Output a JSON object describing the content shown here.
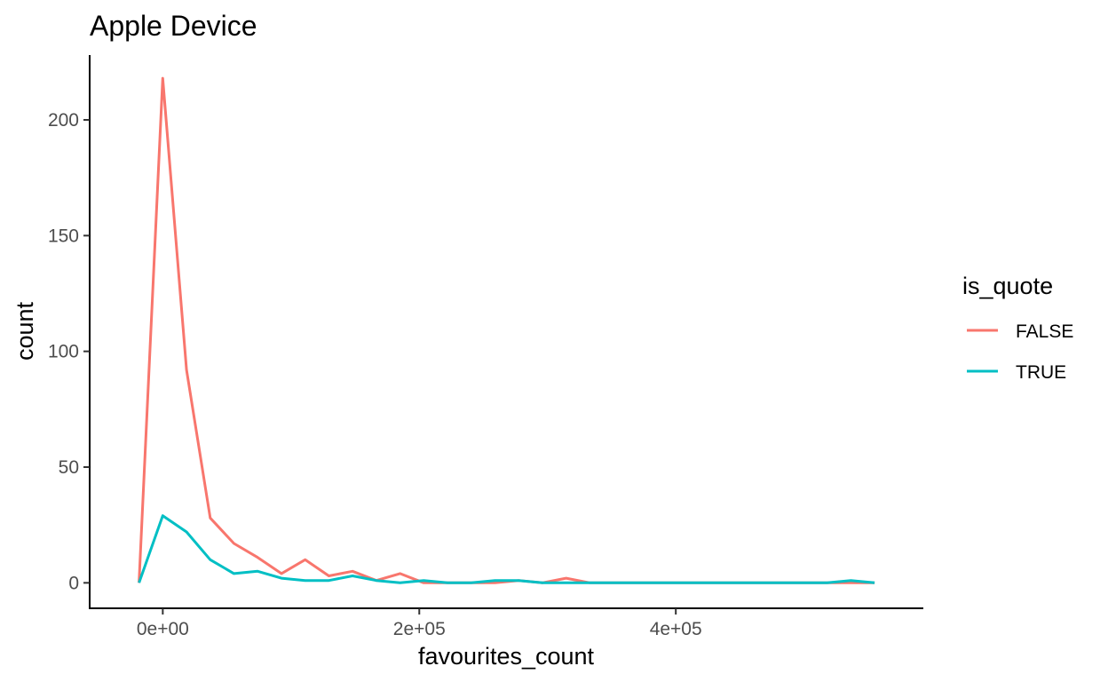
{
  "chart_data": {
    "type": "line",
    "title": "Apple Device",
    "xlabel": "favourites_count",
    "ylabel": "count",
    "xlim": [
      -57000,
      593000
    ],
    "ylim": [
      -11,
      228
    ],
    "x_ticks": [
      0,
      200000,
      400000
    ],
    "x_tick_labels": [
      "0e+00",
      "2e+05",
      "4e+05"
    ],
    "y_ticks": [
      0,
      50,
      100,
      150,
      200
    ],
    "y_tick_labels": [
      "0",
      "50",
      "100",
      "150",
      "200"
    ],
    "grid": false,
    "legend": {
      "title": "is_quote",
      "placement": "right",
      "entries": [
        "FALSE",
        "TRUE"
      ]
    },
    "series": [
      {
        "name": "FALSE",
        "color": "#F8766D",
        "points": [
          [
            -18500,
            0
          ],
          [
            0,
            218
          ],
          [
            18500,
            92
          ],
          [
            37000,
            28
          ],
          [
            55500,
            17
          ],
          [
            74000,
            11
          ],
          [
            92500,
            4
          ],
          [
            111000,
            10
          ],
          [
            129500,
            3
          ],
          [
            148000,
            5
          ],
          [
            166500,
            1
          ],
          [
            185000,
            4
          ],
          [
            203500,
            0
          ],
          [
            222000,
            0
          ],
          [
            240500,
            0
          ],
          [
            259000,
            0
          ],
          [
            277500,
            1
          ],
          [
            296000,
            0
          ],
          [
            314500,
            2
          ],
          [
            333000,
            0
          ],
          [
            351500,
            0
          ],
          [
            370000,
            0
          ],
          [
            388500,
            0
          ],
          [
            407000,
            0
          ],
          [
            425500,
            0
          ],
          [
            444000,
            0
          ],
          [
            462500,
            0
          ],
          [
            481000,
            0
          ],
          [
            499500,
            0
          ],
          [
            518000,
            0
          ],
          [
            536500,
            0
          ],
          [
            555000,
            0
          ]
        ]
      },
      {
        "name": "TRUE",
        "color": "#00BFC4",
        "points": [
          [
            -18500,
            0
          ],
          [
            0,
            29
          ],
          [
            18500,
            22
          ],
          [
            37000,
            10
          ],
          [
            55500,
            4
          ],
          [
            74000,
            5
          ],
          [
            92500,
            2
          ],
          [
            111000,
            1
          ],
          [
            129500,
            1
          ],
          [
            148000,
            3
          ],
          [
            166500,
            1
          ],
          [
            185000,
            0
          ],
          [
            203500,
            1
          ],
          [
            222000,
            0
          ],
          [
            240500,
            0
          ],
          [
            259000,
            1
          ],
          [
            277500,
            1
          ],
          [
            296000,
            0
          ],
          [
            314500,
            0
          ],
          [
            333000,
            0
          ],
          [
            351500,
            0
          ],
          [
            370000,
            0
          ],
          [
            388500,
            0
          ],
          [
            407000,
            0
          ],
          [
            425500,
            0
          ],
          [
            444000,
            0
          ],
          [
            462500,
            0
          ],
          [
            481000,
            0
          ],
          [
            499500,
            0
          ],
          [
            518000,
            0
          ],
          [
            536500,
            1
          ],
          [
            555000,
            0
          ]
        ]
      }
    ]
  }
}
